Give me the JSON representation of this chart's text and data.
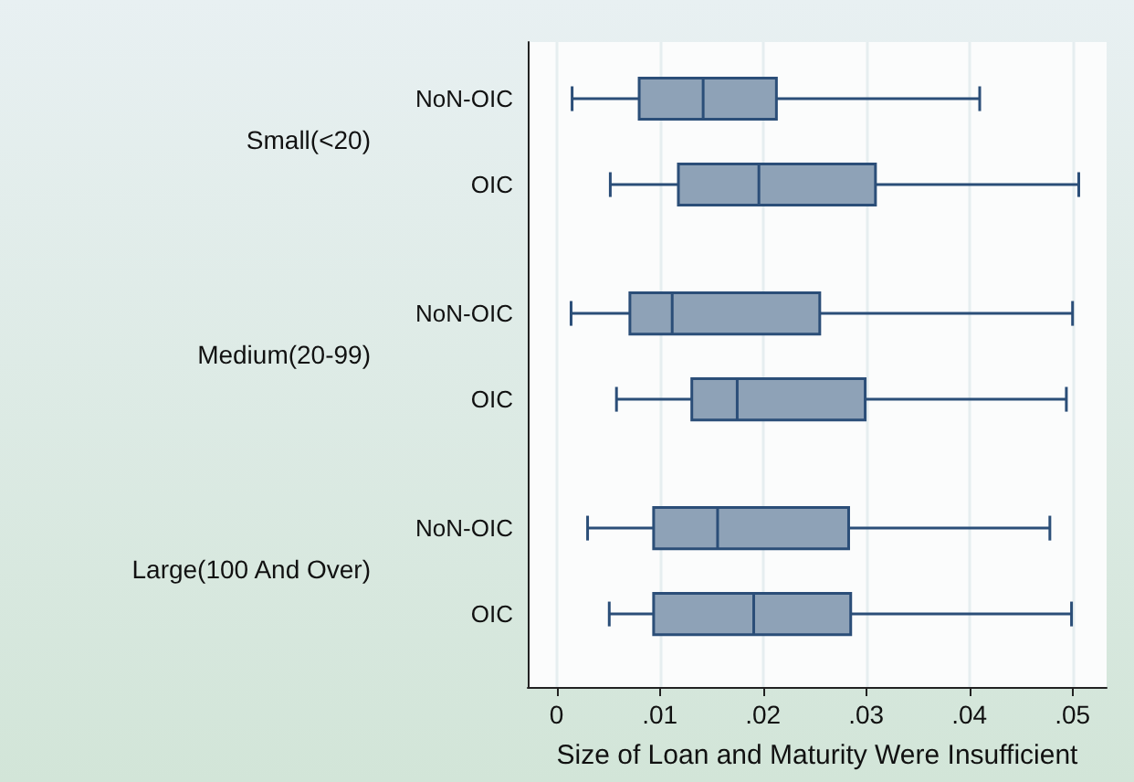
{
  "chart_data": {
    "type": "box",
    "orientation": "horizontal",
    "xlabel": "Size of Loan and Maturity Were Insufficient",
    "categories": [
      "NoN-OIC",
      "OIC",
      "NoN-OIC",
      "OIC",
      "NoN-OIC",
      "OIC"
    ],
    "annotations": [
      "Small(<20)",
      "Medium(20-99)",
      "Large(100 And Over)"
    ],
    "color": "#8ea2b7",
    "boxes": [
      {
        "low": 0.0015,
        "q1": 0.008,
        "median": 0.0142,
        "q3": 0.0213,
        "high": 0.041
      },
      {
        "low": 0.0052,
        "q1": 0.0118,
        "median": 0.0196,
        "q3": 0.0309,
        "high": 0.0506
      },
      {
        "low": 0.0014,
        "q1": 0.0071,
        "median": 0.0112,
        "q3": 0.0255,
        "high": 0.05
      },
      {
        "low": 0.0058,
        "q1": 0.0131,
        "median": 0.0175,
        "q3": 0.0299,
        "high": 0.0494
      },
      {
        "low": 0.003,
        "q1": 0.0094,
        "median": 0.0156,
        "q3": 0.0283,
        "high": 0.0478
      },
      {
        "low": 0.0051,
        "q1": 0.0094,
        "median": 0.0191,
        "q3": 0.0285,
        "high": 0.0499
      }
    ],
    "xlim": [
      -0.0028,
      0.0533
    ],
    "xticks": [
      0,
      {
        "value": 0.01,
        "label": ".01"
      },
      {
        "value": 0.02,
        "label": ".02"
      },
      {
        "value": 0.03,
        "label": ".03"
      },
      {
        "value": 0.04,
        "label": ".04"
      },
      {
        "value": 0.05,
        "label": ".05"
      }
    ],
    "grid": "x"
  }
}
